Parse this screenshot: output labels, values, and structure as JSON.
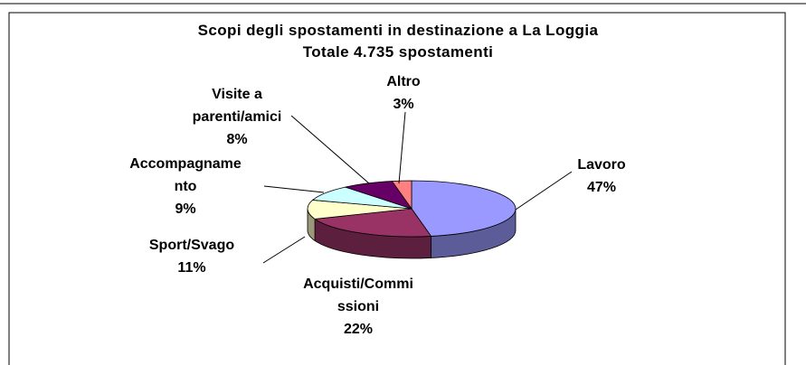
{
  "chart_data": {
    "type": "pie3d",
    "title": "Scopi degli spostamenti in destinazione a La Loggia",
    "subtitle": "Totale 4.735 spostamenti",
    "categories": [
      "Lavoro",
      "Acquisti/Commissioni",
      "Sport/Svago",
      "Accompagnamento",
      "Visite a parenti/amici",
      "Altro"
    ],
    "values": [
      47,
      22,
      11,
      9,
      8,
      3
    ],
    "value_labels": [
      "47%",
      "22%",
      "11%",
      "9%",
      "8%",
      "3%"
    ],
    "colors": [
      "#9999ff",
      "#993366",
      "#ffffcc",
      "#ccffff",
      "#660066",
      "#ff8080"
    ]
  }
}
